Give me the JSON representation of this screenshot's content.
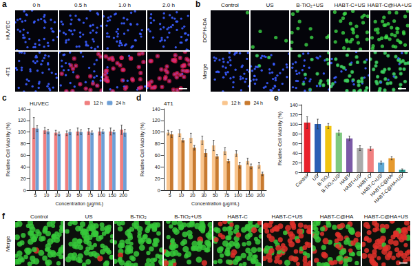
{
  "panel_labels": [
    "a",
    "b",
    "c",
    "d",
    "e",
    "f"
  ],
  "image_panels": {
    "a": {
      "columns": [
        "0 h",
        "0.5 h",
        "1.0 h",
        "2.0 h"
      ],
      "rows": [
        "HUVEC",
        "4T1"
      ]
    },
    "b": {
      "columns": [
        "Control",
        "US",
        "B-TiO₂+US",
        "HABT-C+US",
        "HABT-C@HA+US"
      ],
      "rows": [
        "DCFH-DA",
        "Merge"
      ]
    },
    "f": {
      "columns": [
        "Control",
        "US",
        "B-TiO₂",
        "B-TiO₂+US",
        "HABT-C",
        "HABT-C+US",
        "HABT-C@HA",
        "HABT-C@HA+US"
      ],
      "rows": [
        "Merge"
      ]
    }
  },
  "chart_data": [
    {
      "type": "bar",
      "title": "HUVEC",
      "x_label": "Concentration (μg/mL)",
      "y_label": "Relative Cell Viability (%)",
      "categories": [
        "5",
        "10",
        "20",
        "30",
        "50",
        "75",
        "100",
        "150",
        "200"
      ],
      "series": [
        {
          "name": "12 h",
          "color": "#f07f7f",
          "values": [
            107,
            103,
            99,
            98,
            101,
            101,
            101,
            101,
            104
          ],
          "errors": [
            18,
            5,
            4,
            4,
            6,
            5,
            6,
            6,
            8
          ]
        },
        {
          "name": "24 h",
          "color": "#6d9fd6",
          "values": [
            106,
            101,
            97,
            100,
            100,
            99,
            101,
            100,
            99
          ],
          "errors": [
            5,
            4,
            3,
            4,
            4,
            3,
            3,
            3,
            6
          ]
        }
      ],
      "ylim": [
        0,
        140
      ],
      "yticks": [
        0,
        20,
        40,
        60,
        80,
        100,
        120,
        140
      ],
      "legend": "upper right"
    },
    {
      "type": "bar",
      "title": "4T1",
      "x_label": "Concentration (μg/mL)",
      "y_label": "Relative Cell Viability (%)",
      "categories": [
        "5",
        "10",
        "20",
        "30",
        "50",
        "75",
        "100",
        "150",
        "200"
      ],
      "series": [
        {
          "name": "12 h",
          "color": "#f9c58d",
          "values": [
            99,
            98,
            90,
            86,
            77,
            67,
            63,
            50,
            43
          ],
          "errors": [
            4,
            6,
            8,
            7,
            9,
            6,
            5,
            5,
            5
          ]
        },
        {
          "name": "24 h",
          "color": "#c87a2f",
          "values": [
            96,
            86,
            73,
            64,
            58,
            50,
            43,
            41,
            28
          ],
          "errors": [
            5,
            3,
            4,
            6,
            3,
            3,
            5,
            4,
            3
          ]
        }
      ],
      "ylim": [
        0,
        140
      ],
      "yticks": [
        0,
        20,
        40,
        60,
        80,
        100,
        120,
        140
      ],
      "legend": "upper right"
    },
    {
      "type": "bar",
      "y_label": "Relative Cell Viability (%)",
      "categories": [
        "Control",
        "US",
        "B-TiO₂",
        "B-TiO₂+US",
        "HABT",
        "HABT+US",
        "HABT-C",
        "HABT-C+US",
        "HABT-C@HA",
        "HABT-C@HA+US"
      ],
      "values": [
        103,
        100,
        96,
        82,
        70,
        50,
        49,
        20,
        29,
        5
      ],
      "errors": [
        12,
        10,
        5,
        5,
        5,
        5,
        4,
        3,
        3,
        2
      ],
      "colors": [
        "#e8202a",
        "#2b5fb4",
        "#f1c40f",
        "#7fc97f",
        "#7b5aa6",
        "#aaaaaa",
        "#f08080",
        "#5fa8d3",
        "#e69a2e",
        "#2aa198"
      ],
      "ylim": [
        0,
        140
      ],
      "yticks": [
        0,
        20,
        40,
        60,
        80,
        100,
        120,
        140
      ]
    }
  ]
}
